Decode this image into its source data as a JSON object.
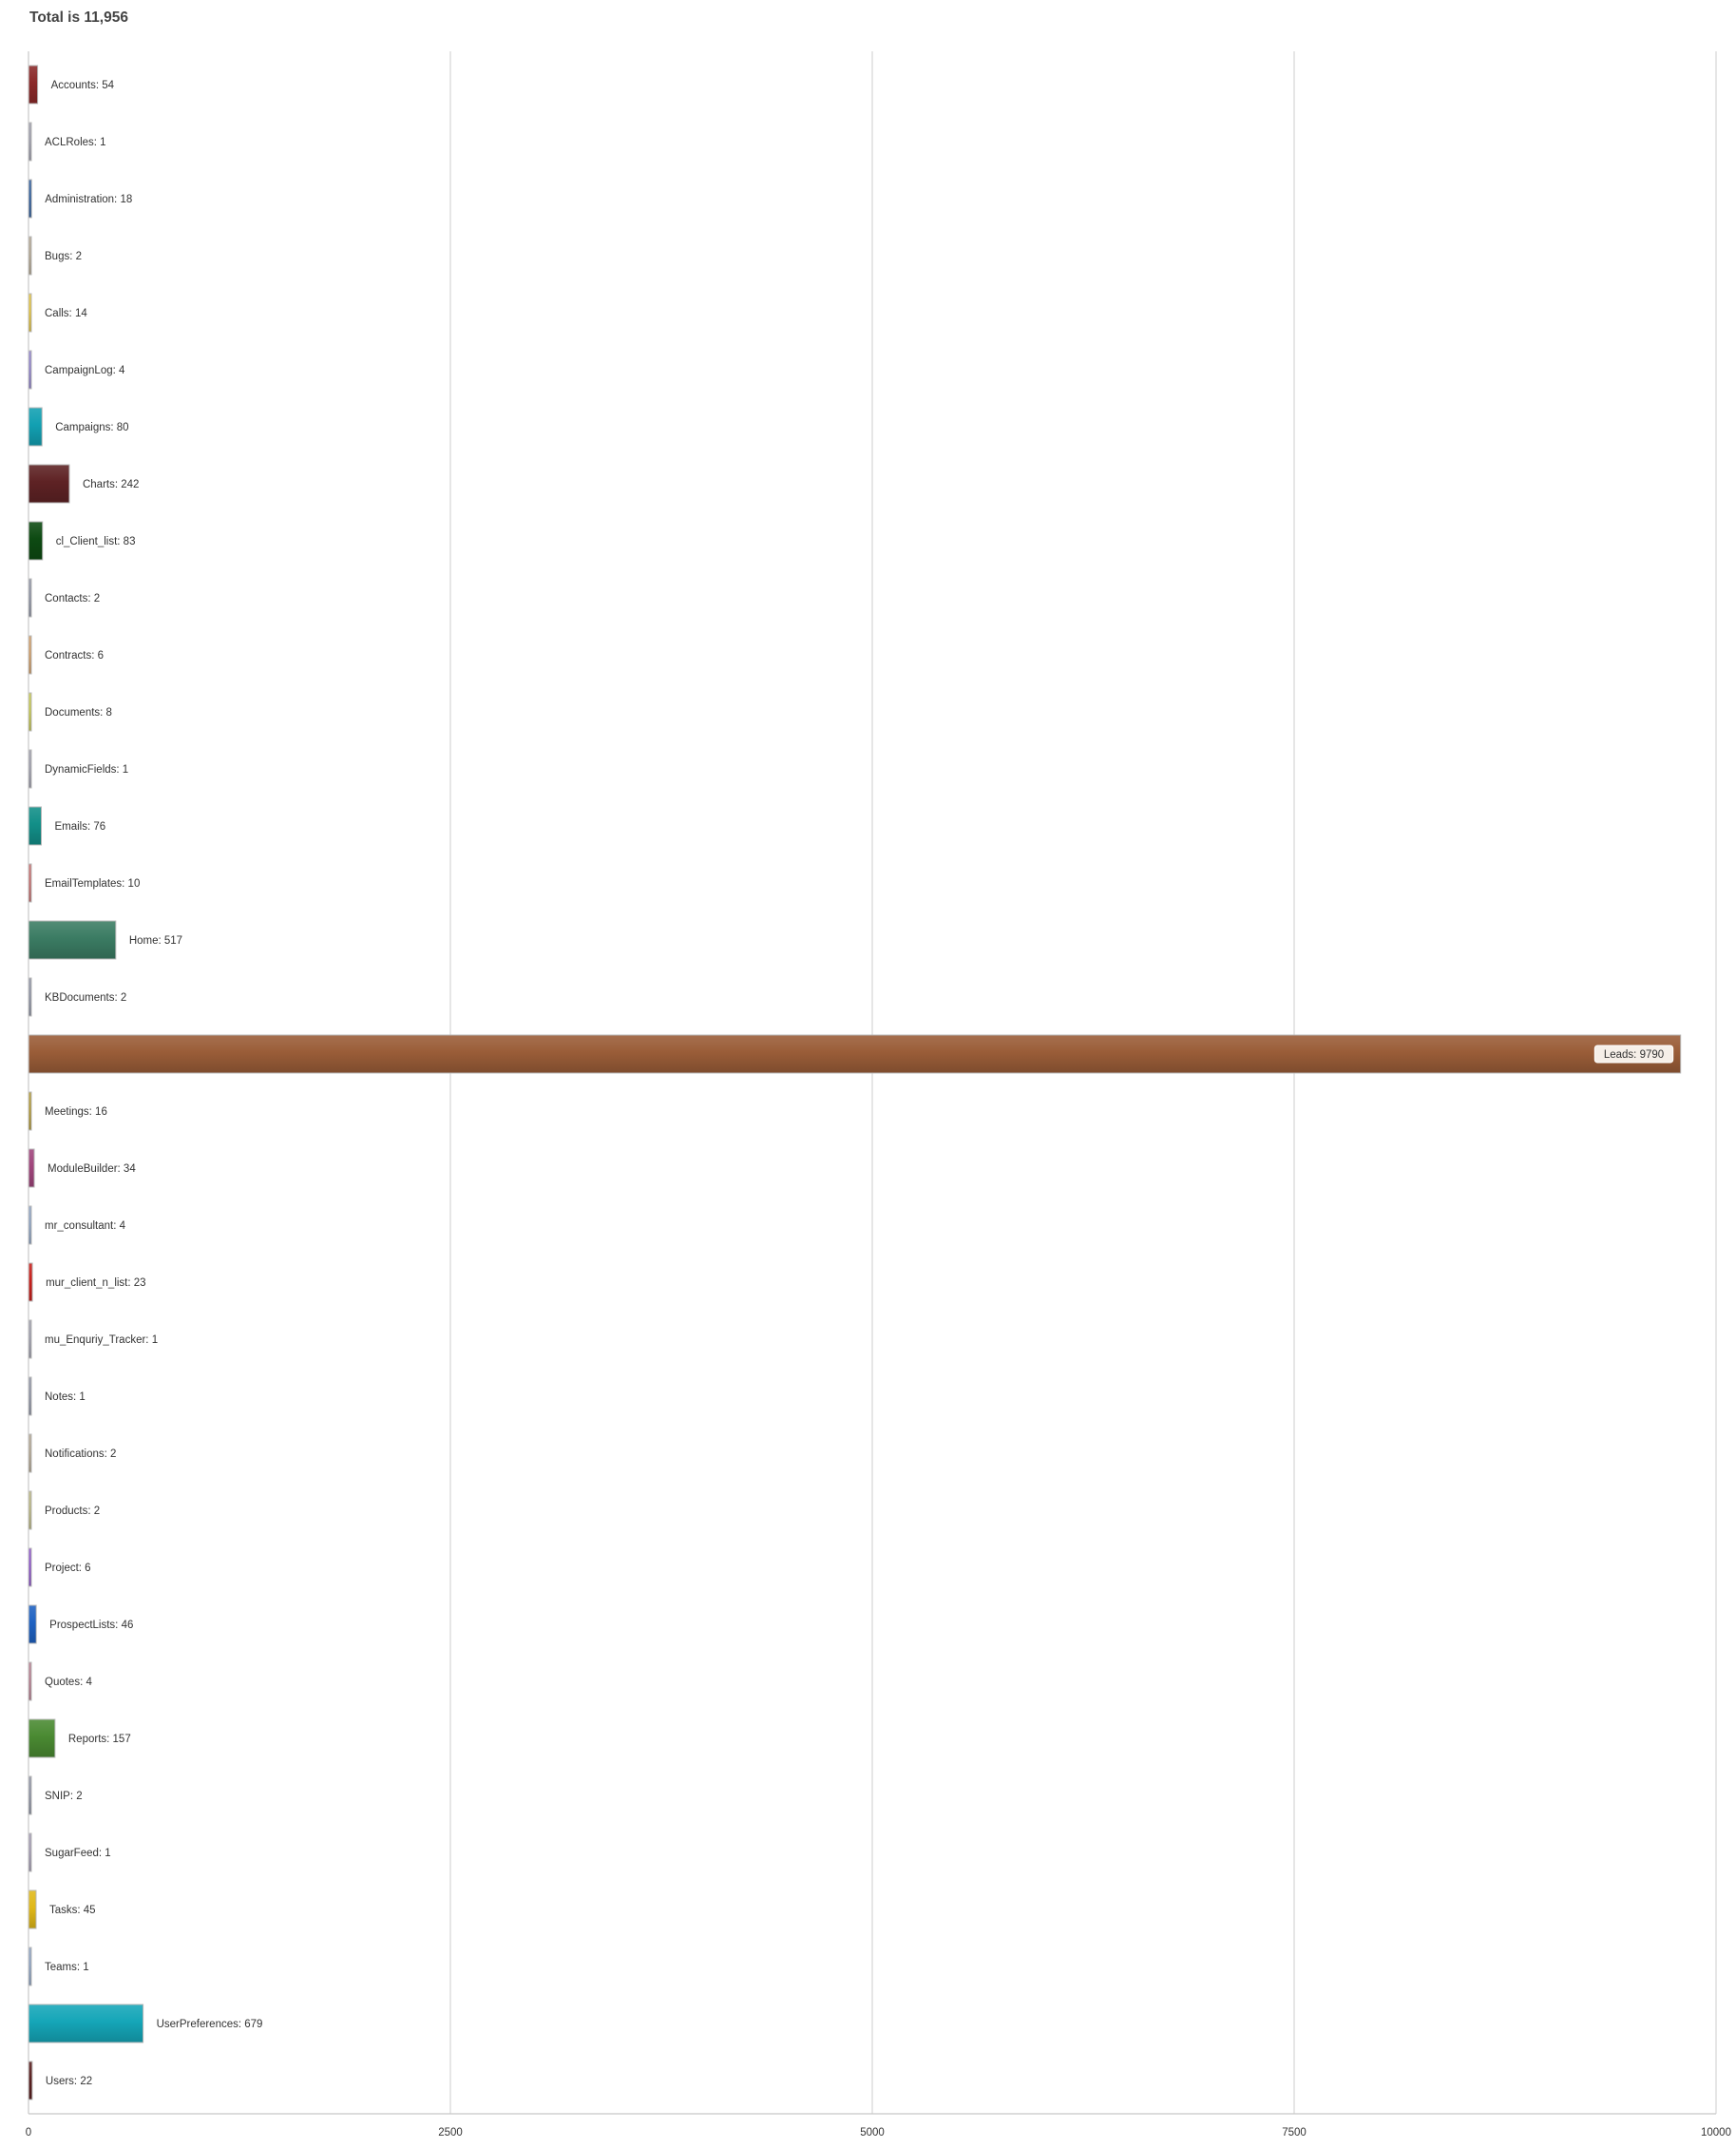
{
  "chart_data": {
    "type": "bar",
    "orientation": "horizontal",
    "title": "Total is 11,956",
    "xlabel": "",
    "ylabel": "",
    "xlim": [
      0,
      10000
    ],
    "x_ticks": [
      "0",
      "2500",
      "5000",
      "7500",
      "10000"
    ],
    "grid": true,
    "legend": "none",
    "highlighted_category": "Leads",
    "categories": [
      "Accounts",
      "ACLRoles",
      "Administration",
      "Bugs",
      "Calls",
      "CampaignLog",
      "Campaigns",
      "Charts",
      "cl_Client_list",
      "Contacts",
      "Contracts",
      "Documents",
      "DynamicFields",
      "Emails",
      "EmailTemplates",
      "Home",
      "KBDocuments",
      "Leads",
      "Meetings",
      "ModuleBuilder",
      "mr_consultant",
      "mur_client_n_list",
      "mu_Enquriy_Tracker",
      "Notes",
      "Notifications",
      "Products",
      "Project",
      "ProspectLists",
      "Quotes",
      "Reports",
      "SNIP",
      "SugarFeed",
      "Tasks",
      "Teams",
      "UserPreferences",
      "Users"
    ],
    "values": [
      54,
      1,
      18,
      2,
      14,
      4,
      80,
      242,
      83,
      2,
      6,
      8,
      1,
      76,
      10,
      517,
      2,
      9790,
      16,
      34,
      4,
      23,
      1,
      1,
      2,
      2,
      6,
      46,
      4,
      157,
      2,
      1,
      45,
      1,
      679,
      22
    ],
    "labels": [
      "Accounts: 54",
      "ACLRoles: 1",
      "Administration: 18",
      "Bugs: 2",
      "Calls: 14",
      "CampaignLog: 4",
      "Campaigns: 80",
      "Charts: 242",
      "cl_Client_list: 83",
      "Contacts: 2",
      "Contracts: 6",
      "Documents: 8",
      "DynamicFields: 1",
      "Emails: 76",
      "EmailTemplates: 10",
      "Home: 517",
      "KBDocuments: 2",
      "Leads: 9790",
      "Meetings: 16",
      "ModuleBuilder: 34",
      "mr_consultant: 4",
      "mur_client_n_list: 23",
      "mu_Enquriy_Tracker: 1",
      "Notes: 1",
      "Notifications: 2",
      "Products: 2",
      "Project: 6",
      "ProspectLists: 46",
      "Quotes: 4",
      "Reports: 157",
      "SNIP: 2",
      "SugarFeed: 1",
      "Tasks: 45",
      "Teams: 1",
      "UserPreferences: 679",
      "Users: 22"
    ],
    "colors": [
      "#8b2a2a",
      "#9a9aa8",
      "#2f5d9a",
      "#b0a38e",
      "#e3c23a",
      "#8c7fc8",
      "#12a0b2",
      "#5e2224",
      "#0d4a12",
      "#8a8fa0",
      "#cf9a62",
      "#c4c64a",
      "#9a9aa8",
      "#128f88",
      "#c46a6a",
      "#3b7c63",
      "#8a8fa0",
      "#9a5d38",
      "#b09630",
      "#a0457c",
      "#8aa0c0",
      "#c8201c",
      "#9a9aa8",
      "#8a8fa0",
      "#b0a38e",
      "#b8b47e",
      "#8a50c8",
      "#1f62c2",
      "#b47a8c",
      "#4a8a32",
      "#8a8fa0",
      "#a098b0",
      "#e0b818",
      "#8aa0c0",
      "#15a6b8",
      "#5a2020"
    ]
  }
}
